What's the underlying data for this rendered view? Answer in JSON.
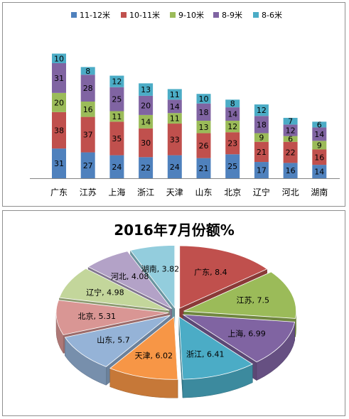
{
  "chart_data": [
    {
      "type": "bar",
      "stacked": true,
      "categories": [
        "广东",
        "江苏",
        "上海",
        "浙江",
        "天津",
        "山东",
        "北京",
        "辽宁",
        "河北",
        "湖南"
      ],
      "series": [
        {
          "name": "11-12米",
          "color": "#4f81bd",
          "values": [
            31,
            27,
            24,
            22,
            24,
            21,
            25,
            17,
            16,
            14
          ]
        },
        {
          "name": "10-11米",
          "color": "#c0504d",
          "values": [
            38,
            37,
            35,
            30,
            33,
            26,
            23,
            21,
            22,
            16
          ]
        },
        {
          "name": "9-10米",
          "color": "#9bbb59",
          "values": [
            20,
            16,
            11,
            14,
            11,
            13,
            12,
            9,
            6,
            9
          ]
        },
        {
          "name": "8-9米",
          "color": "#8064a2",
          "values": [
            31,
            28,
            25,
            20,
            14,
            18,
            14,
            18,
            12,
            14
          ]
        },
        {
          "name": "8-6米",
          "color": "#4bacc6",
          "values": [
            10,
            8,
            12,
            13,
            11,
            10,
            8,
            12,
            7,
            6
          ]
        }
      ],
      "legend": "top",
      "grid": false,
      "ylim": [
        0,
        140
      ]
    },
    {
      "type": "pie",
      "style": "3d-exploded",
      "title": "2016年7月份额%",
      "categories": [
        "广东",
        "江苏",
        "上海",
        "浙江",
        "天津",
        "山东",
        "北京",
        "辽宁",
        "河北",
        "湖南"
      ],
      "values": [
        8.4,
        7.5,
        6.99,
        6.41,
        6.02,
        5.7,
        5.31,
        4.98,
        4.08,
        3.82
      ],
      "colors": [
        "#c0504d",
        "#9bbb59",
        "#8064a2",
        "#4bacc6",
        "#f79646",
        "#95b3d7",
        "#d99694",
        "#c3d69b",
        "#b3a2c7",
        "#93cddd"
      ],
      "data_labels": [
        "广东, 8.4",
        "江苏, 7.5",
        "上海, 6.99",
        "浙江, 6.41",
        "天津, 6.02",
        "山东, 5.7",
        "北京, 5.31",
        "辽宁, 4.98",
        "河北, 4.08",
        "湖南, 3.82"
      ]
    }
  ]
}
